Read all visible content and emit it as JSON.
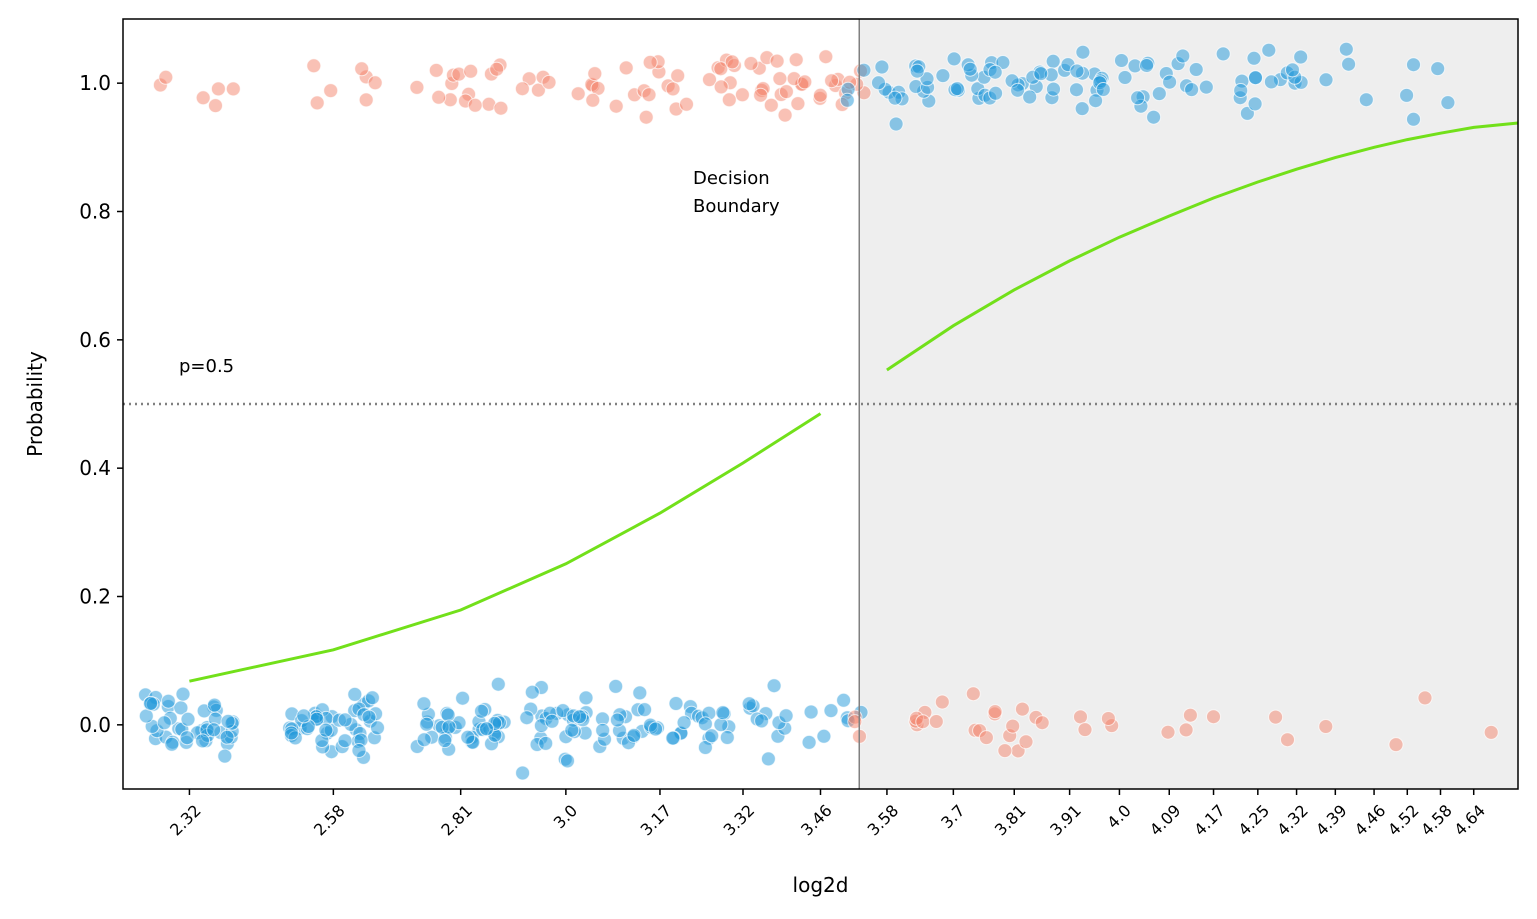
{
  "chart_data": {
    "type": "scatter",
    "xlabel": "log2d",
    "ylabel": "Probability",
    "xlim": [
      2.2,
      4.72
    ],
    "ylim": [
      -0.1,
      1.1
    ],
    "x_ticks": [
      "2.32",
      "2.58",
      "2.81",
      "3.0",
      "3.17",
      "3.32",
      "3.46",
      "3.58",
      "3.7",
      "3.81",
      "3.91",
      "4.0",
      "4.09",
      "4.17",
      "4.25",
      "4.32",
      "4.39",
      "4.46",
      "4.52",
      "4.58",
      "4.64"
    ],
    "y_ticks": [
      "0.0",
      "0.2",
      "0.4",
      "0.6",
      "0.8",
      "1.0"
    ],
    "threshold": {
      "y": 0.5,
      "label": "p=0.5"
    },
    "decision_boundary": {
      "x": 3.53,
      "label_line1": "Decision",
      "label_line2": "Boundary",
      "shade_color": "#eeeeee"
    },
    "colors": {
      "orange": "#f4836b",
      "blue": "#1f97d9",
      "curve": "#72e01a",
      "boundary": "#808080"
    },
    "series": [
      {
        "role": "fitted-curve",
        "x": [
          2.32,
          2.58,
          2.81,
          3.0,
          3.17,
          3.32,
          3.46
        ],
        "y": [
          0.068,
          0.117,
          0.179,
          0.251,
          0.33,
          0.408,
          0.485
        ]
      },
      {
        "role": "fitted-curve",
        "x": [
          3.58,
          3.7,
          3.81,
          3.91,
          4.0,
          4.09,
          4.17,
          4.25,
          4.32,
          4.39,
          4.46,
          4.52,
          4.58,
          4.64,
          4.72
        ],
        "y": [
          0.553,
          0.622,
          0.678,
          0.723,
          0.76,
          0.793,
          0.821,
          0.846,
          0.866,
          0.884,
          0.9,
          0.912,
          0.922,
          0.931,
          0.938
        ]
      },
      {
        "role": "observed",
        "color": "orange",
        "y_level": 1,
        "groups": [
          {
            "x": 2.32,
            "n": 6
          },
          {
            "x": 2.58,
            "n": 7
          },
          {
            "x": 2.81,
            "n": 16
          },
          {
            "x": 3.0,
            "n": 11
          },
          {
            "x": 3.17,
            "n": 14
          },
          {
            "x": 3.32,
            "n": 20
          },
          {
            "x": 3.46,
            "n": 20
          }
        ]
      },
      {
        "role": "observed",
        "color": "blue",
        "y_level": 0,
        "groups": [
          {
            "x": 2.32,
            "n": 45
          },
          {
            "x": 2.58,
            "n": 48
          },
          {
            "x": 2.81,
            "n": 40
          },
          {
            "x": 3.0,
            "n": 33
          },
          {
            "x": 3.17,
            "n": 26
          },
          {
            "x": 3.32,
            "n": 22
          },
          {
            "x": 3.46,
            "n": 9
          }
        ]
      },
      {
        "role": "observed",
        "color": "blue",
        "y_level": 1,
        "groups": [
          {
            "x": 3.58,
            "n": 14
          },
          {
            "x": 3.7,
            "n": 18
          },
          {
            "x": 3.81,
            "n": 13
          },
          {
            "x": 3.91,
            "n": 12
          },
          {
            "x": 4.0,
            "n": 13
          },
          {
            "x": 4.09,
            "n": 9
          },
          {
            "x": 4.17,
            "n": 8
          },
          {
            "x": 4.25,
            "n": 5
          },
          {
            "x": 4.32,
            "n": 7
          },
          {
            "x": 4.39,
            "n": 3
          },
          {
            "x": 4.46,
            "n": 4
          },
          {
            "x": 4.52,
            "n": 1
          },
          {
            "x": 4.58,
            "n": 1
          },
          {
            "x": 4.64,
            "n": 1
          }
        ]
      },
      {
        "role": "observed",
        "color": "orange",
        "y_level": 0,
        "groups": [
          {
            "x": 3.58,
            "n": 7
          },
          {
            "x": 3.7,
            "n": 6
          },
          {
            "x": 3.81,
            "n": 9
          },
          {
            "x": 3.91,
            "n": 2
          },
          {
            "x": 4.0,
            "n": 4
          },
          {
            "x": 4.09,
            "n": 3
          },
          {
            "x": 4.17,
            "n": 1
          },
          {
            "x": 4.25,
            "n": 1
          },
          {
            "x": 4.32,
            "n": 2
          },
          {
            "x": 4.46,
            "n": 1
          },
          {
            "x": 4.52,
            "n": 1
          },
          {
            "x": 4.64,
            "n": 1
          }
        ]
      }
    ]
  }
}
